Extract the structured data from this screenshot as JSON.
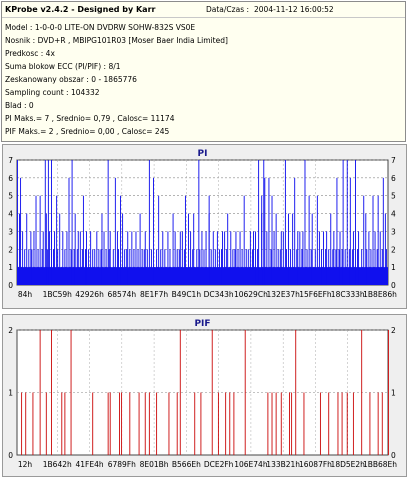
{
  "info": {
    "title": "KProbe v2.4.2 - Designed by Karr",
    "datetime_label": "Data/Czas :",
    "datetime_value": "2004-11-12 16:00:52",
    "lines": [
      "Model : 1-0-0-0 LITE-ON DVDRW SOHW-832S  VS0E",
      "Nosnik : DVD+R , MBIPG101R03 [Moser Baer India Limited]",
      "Predkosc : 4x",
      "Suma blokow ECC (PI/PIF) : 8/1",
      "Zeskanowany obszar : 0 - 1865776",
      "Sampling count : 104332",
      "Blad : 0",
      "PI Maks.= 7 , Srednio= 0,79 , Calosc= 11174",
      "PIF Maks.= 2 , Srednio= 0,00 , Calosc= 245"
    ]
  },
  "colors": {
    "pi": "#1010ee",
    "pif": "#cc1010"
  },
  "chart_data": [
    {
      "type": "bar",
      "title": "PI",
      "ylim": [
        0,
        7
      ],
      "yticks": [
        "0",
        "1",
        "2",
        "3",
        "4",
        "5",
        "6",
        "7"
      ],
      "xticks": [
        "84h",
        "1BC59h",
        "42926h",
        "68574h",
        "8E1F7h",
        "B49C1h",
        "DC343h",
        "10629Ch",
        "132E37h",
        "15F6EFh",
        "18C333h",
        "1B8E86h"
      ],
      "grid": true,
      "n_bins": 360,
      "baseline_level": 1,
      "values": [
        [
          0,
          7
        ],
        [
          27,
          7
        ],
        [
          30,
          7
        ],
        [
          33,
          7
        ],
        [
          53,
          7
        ],
        [
          88,
          7
        ],
        [
          128,
          7
        ],
        [
          176,
          7
        ],
        [
          234,
          7
        ],
        [
          239,
          7
        ],
        [
          260,
          7
        ],
        [
          279,
          7
        ],
        [
          316,
          7
        ],
        [
          320,
          7
        ],
        [
          328,
          7
        ],
        [
          3,
          6
        ],
        [
          50,
          6
        ],
        [
          95,
          6
        ],
        [
          132,
          6
        ],
        [
          240,
          6
        ],
        [
          244,
          6
        ],
        [
          269,
          6
        ],
        [
          310,
          6
        ],
        [
          323,
          6
        ],
        [
          355,
          6
        ],
        [
          18,
          5
        ],
        [
          22,
          5
        ],
        [
          38,
          5
        ],
        [
          64,
          5
        ],
        [
          100,
          5
        ],
        [
          137,
          5
        ],
        [
          163,
          5
        ],
        [
          186,
          5
        ],
        [
          220,
          5
        ],
        [
          237,
          5
        ],
        [
          247,
          5
        ],
        [
          283,
          5
        ],
        [
          291,
          5
        ],
        [
          336,
          5
        ],
        [
          345,
          5
        ],
        [
          350,
          5
        ],
        [
          2,
          4
        ],
        [
          9,
          4
        ],
        [
          28,
          4
        ],
        [
          33,
          4
        ],
        [
          41,
          4
        ],
        [
          56,
          4
        ],
        [
          82,
          4
        ],
        [
          102,
          4
        ],
        [
          119,
          4
        ],
        [
          151,
          4
        ],
        [
          166,
          4
        ],
        [
          171,
          4
        ],
        [
          186,
          4
        ],
        [
          204,
          4
        ],
        [
          237,
          4
        ],
        [
          251,
          4
        ],
        [
          263,
          4
        ],
        [
          267,
          4
        ],
        [
          286,
          4
        ],
        [
          304,
          4
        ],
        [
          338,
          4
        ],
        [
          357,
          4
        ],
        [
          5,
          3
        ],
        [
          13,
          3
        ],
        [
          16,
          3
        ],
        [
          25,
          3
        ],
        [
          31,
          3
        ],
        [
          36,
          3
        ],
        [
          44,
          3
        ],
        [
          48,
          3
        ],
        [
          59,
          3
        ],
        [
          61,
          3
        ],
        [
          67,
          3
        ],
        [
          71,
          3
        ],
        [
          77,
          3
        ],
        [
          84,
          3
        ],
        [
          90,
          3
        ],
        [
          97,
          3
        ],
        [
          107,
          3
        ],
        [
          111,
          3
        ],
        [
          115,
          3
        ],
        [
          124,
          3
        ],
        [
          141,
          3
        ],
        [
          146,
          3
        ],
        [
          153,
          3
        ],
        [
          158,
          3
        ],
        [
          160,
          3
        ],
        [
          168,
          3
        ],
        [
          179,
          3
        ],
        [
          183,
          3
        ],
        [
          190,
          3
        ],
        [
          194,
          3
        ],
        [
          199,
          3
        ],
        [
          201,
          3
        ],
        [
          207,
          3
        ],
        [
          212,
          3
        ],
        [
          216,
          3
        ],
        [
          226,
          3
        ],
        [
          229,
          3
        ],
        [
          231,
          3
        ],
        [
          242,
          3
        ],
        [
          249,
          3
        ],
        [
          256,
          3
        ],
        [
          258,
          3
        ],
        [
          272,
          3
        ],
        [
          274,
          3
        ],
        [
          277,
          3
        ],
        [
          293,
          3
        ],
        [
          297,
          3
        ],
        [
          300,
          3
        ],
        [
          307,
          3
        ],
        [
          313,
          3
        ],
        [
          326,
          3
        ],
        [
          331,
          3
        ],
        [
          341,
          3
        ],
        [
          347,
          3
        ],
        [
          352,
          3
        ],
        [
          7,
          2
        ],
        [
          11,
          2
        ],
        [
          14,
          2
        ],
        [
          20,
          2
        ],
        [
          24,
          2
        ],
        [
          29,
          2
        ],
        [
          35,
          2
        ],
        [
          39,
          2
        ],
        [
          46,
          2
        ],
        [
          52,
          2
        ],
        [
          55,
          2
        ],
        [
          58,
          2
        ],
        [
          63,
          2
        ],
        [
          66,
          2
        ],
        [
          69,
          2
        ],
        [
          73,
          2
        ],
        [
          75,
          2
        ],
        [
          79,
          2
        ],
        [
          81,
          2
        ],
        [
          86,
          2
        ],
        [
          89,
          2
        ],
        [
          93,
          2
        ],
        [
          98,
          2
        ],
        [
          104,
          2
        ],
        [
          106,
          2
        ],
        [
          109,
          2
        ],
        [
          113,
          2
        ],
        [
          117,
          2
        ],
        [
          121,
          2
        ],
        [
          123,
          2
        ],
        [
          126,
          2
        ],
        [
          130,
          2
        ],
        [
          135,
          2
        ],
        [
          139,
          2
        ],
        [
          143,
          2
        ],
        [
          148,
          2
        ],
        [
          155,
          2
        ],
        [
          157,
          2
        ],
        [
          162,
          2
        ],
        [
          170,
          2
        ],
        [
          174,
          2
        ],
        [
          177,
          2
        ],
        [
          181,
          2
        ],
        [
          188,
          2
        ],
        [
          192,
          2
        ],
        [
          196,
          2
        ],
        [
          198,
          2
        ],
        [
          203,
          2
        ],
        [
          209,
          2
        ],
        [
          211,
          2
        ],
        [
          214,
          2
        ],
        [
          218,
          2
        ],
        [
          222,
          2
        ],
        [
          224,
          2
        ],
        [
          228,
          2
        ],
        [
          233,
          2
        ],
        [
          246,
          2
        ],
        [
          253,
          2
        ],
        [
          255,
          2
        ],
        [
          261,
          2
        ],
        [
          265,
          2
        ],
        [
          271,
          2
        ],
        [
          276,
          2
        ],
        [
          281,
          2
        ],
        [
          285,
          2
        ],
        [
          289,
          2
        ],
        [
          295,
          2
        ],
        [
          299,
          2
        ],
        [
          302,
          2
        ],
        [
          306,
          2
        ],
        [
          309,
          2
        ],
        [
          312,
          2
        ],
        [
          315,
          2
        ],
        [
          318,
          2
        ],
        [
          322,
          2
        ],
        [
          325,
          2
        ],
        [
          330,
          2
        ],
        [
          334,
          2
        ],
        [
          339,
          2
        ],
        [
          343,
          2
        ],
        [
          349,
          2
        ],
        [
          354,
          2
        ],
        [
          358,
          2
        ]
      ]
    },
    {
      "type": "bar",
      "title": "PIF",
      "ylim": [
        0,
        2
      ],
      "yticks": [
        "0",
        "1",
        "2"
      ],
      "xticks": [
        "12h",
        "1B642h",
        "41FE4h",
        "6789Fh",
        "8E01Bh",
        "B566Eh",
        "DCE2Fh",
        "106E74h",
        "133B21h",
        "16087Fh",
        "18D5E2h",
        "1BB68Eh"
      ],
      "grid": true,
      "n_bins": 360,
      "values": [
        [
          22,
          2
        ],
        [
          33,
          2
        ],
        [
          52,
          2
        ],
        [
          158,
          2
        ],
        [
          189,
          2
        ],
        [
          221,
          2
        ],
        [
          270,
          2
        ],
        [
          334,
          2
        ],
        [
          360,
          2
        ],
        [
          4,
          1
        ],
        [
          8,
          1
        ],
        [
          15,
          1
        ],
        [
          28,
          1
        ],
        [
          43,
          1
        ],
        [
          46,
          1
        ],
        [
          73,
          1
        ],
        [
          88,
          1
        ],
        [
          90,
          1
        ],
        [
          99,
          1
        ],
        [
          101,
          1
        ],
        [
          109,
          1
        ],
        [
          118,
          1
        ],
        [
          124,
          1
        ],
        [
          128,
          1
        ],
        [
          135,
          1
        ],
        [
          147,
          1
        ],
        [
          155,
          1
        ],
        [
          172,
          1
        ],
        [
          178,
          1
        ],
        [
          195,
          1
        ],
        [
          202,
          1
        ],
        [
          206,
          1
        ],
        [
          210,
          1
        ],
        [
          243,
          1
        ],
        [
          247,
          1
        ],
        [
          251,
          1
        ],
        [
          256,
          1
        ],
        [
          264,
          1
        ],
        [
          266,
          1
        ],
        [
          278,
          1
        ],
        [
          294,
          1
        ],
        [
          302,
          1
        ],
        [
          311,
          1
        ],
        [
          315,
          1
        ],
        [
          320,
          1
        ],
        [
          326,
          1
        ],
        [
          342,
          1
        ],
        [
          350,
          1
        ],
        [
          354,
          1
        ]
      ]
    }
  ]
}
